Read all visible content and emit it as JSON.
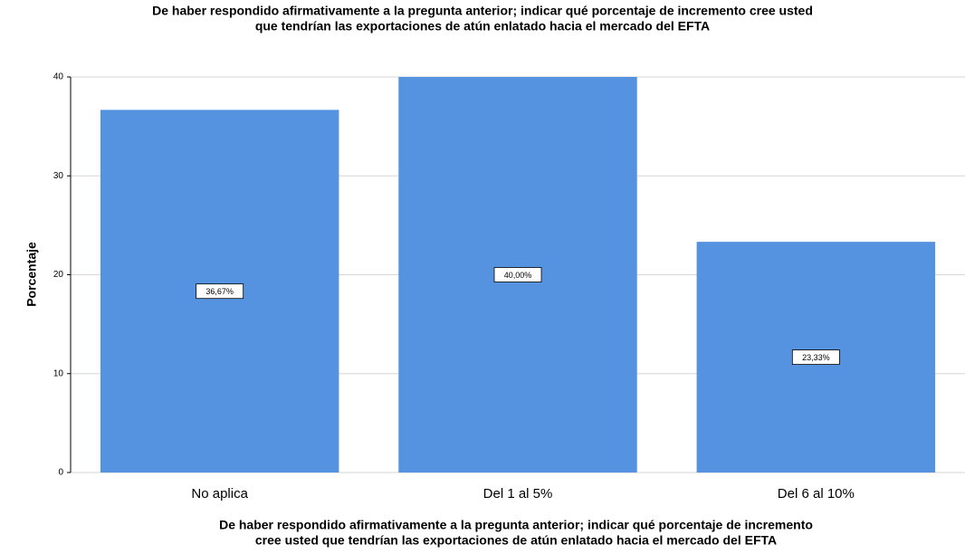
{
  "chart_data": {
    "type": "bar",
    "title": [
      "De haber respondido afirmativamente a la pregunta anterior; indicar qué porcentaje de incremento cree usted",
      "que tendrían las exportaciones de atún enlatado hacia el mercado del EFTA"
    ],
    "x_label": [
      "De haber respondido afirmativamente a la pregunta anterior; indicar qué porcentaje de incremento",
      "cree usted que tendrían las exportaciones de atún enlatado hacia el mercado del EFTA"
    ],
    "y_label": "Porcentaje",
    "categories": [
      "No aplica",
      "Del 1 al 5%",
      "Del 6 al 10%"
    ],
    "values": [
      36.67,
      40,
      23.33
    ],
    "value_labels": [
      "36,67%",
      "40,00%",
      "23,33%"
    ],
    "color": "#5592e0",
    "ylim": [
      0,
      40
    ],
    "yticks": [
      0,
      10,
      20,
      30,
      40
    ],
    "grid": true
  }
}
